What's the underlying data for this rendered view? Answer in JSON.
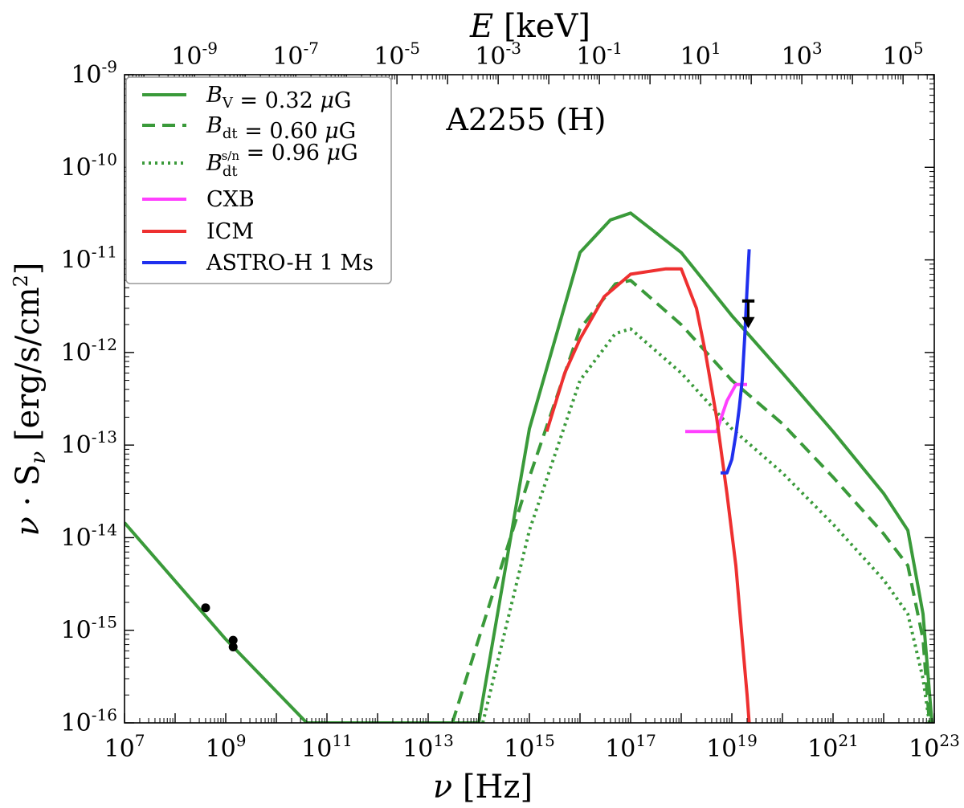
{
  "chart_data": {
    "type": "line",
    "xscale": "log",
    "yscale": "log",
    "xlabel": "ν [Hz]",
    "ylabel": "ν · S_ν [erg/s/cm²]",
    "top_xlabel": "E [keV]",
    "annotation": "A2255 (H)",
    "xlim": [
      10000000.0,
      1e+23
    ],
    "ylim": [
      1e-16,
      1e-09
    ],
    "top_xlim_keV": [
      4.14e-11,
      414000.0
    ],
    "grid": false,
    "legend_position": "top-left",
    "x_tick_exponents": [
      "7",
      "9",
      "11",
      "13",
      "15",
      "17",
      "19",
      "21",
      "23"
    ],
    "y_tick_exponents": [
      "-9",
      "-10",
      "-11",
      "-12",
      "-13",
      "-14",
      "-15",
      "-16"
    ],
    "top_tick_exponents": [
      "-9",
      "-7",
      "-5",
      "-3",
      "-1",
      "1",
      "3",
      "5"
    ],
    "tick_base": "10",
    "series": [
      {
        "name": "B_V = 0.32 μG",
        "color": "#3a9a3a",
        "style": "solid",
        "x": [
          10000000.0,
          1000000000.0,
          40000000000.0,
          100000000000000.0,
          1000000000000000.0,
          1e+16,
          4e+16,
          1e+17,
          1e+18,
          1e+19,
          1e+20,
          1e+21,
          1e+22,
          3e+22,
          6e+22,
          9e+22
        ],
        "y": [
          1.45e-14,
          8e-16,
          1e-16,
          1e-16,
          1.5e-13,
          1.2e-11,
          2.7e-11,
          3.2e-11,
          1.2e-11,
          2.5e-12,
          6e-13,
          1.4e-13,
          3e-14,
          1.2e-14,
          1.5e-15,
          1e-16
        ]
      },
      {
        "name": "B_dt = 0.60 μG",
        "color": "#3a9a3a",
        "style": "dashed",
        "x": [
          30000000000000.0,
          1000000000000000.0,
          1e+16,
          5e+16,
          1e+17,
          1e+18,
          1e+19,
          1e+20,
          1e+21,
          1e+22,
          3e+22,
          6e+22,
          8e+22
        ],
        "y": [
          1e-16,
          4.5e-14,
          1.8e-12,
          5.5e-12,
          6e-12,
          2e-12,
          5e-13,
          1.7e-13,
          4.5e-14,
          1.1e-14,
          5e-15,
          8e-16,
          1e-16
        ]
      },
      {
        "name": "B_dt^s/n = 0.96 μG",
        "color": "#3a9a3a",
        "style": "dotted",
        "x": [
          120000000000000.0,
          1000000000000000.0,
          1e+16,
          5e+16,
          1e+17,
          1e+18,
          1e+19,
          1e+20,
          1e+21,
          1e+22,
          3e+22,
          6e+22,
          8e+22
        ],
        "y": [
          1e-16,
          1.2e-14,
          5e-13,
          1.6e-12,
          1.8e-12,
          6e-13,
          1.5e-13,
          5e-14,
          1.4e-14,
          3.5e-15,
          1.5e-15,
          3e-16,
          1e-16
        ]
      },
      {
        "name": "CXB",
        "color": "#ff40ff",
        "style": "solid",
        "x": [
          1.2e+18,
          5e+18,
          8e+18,
          1.2e+19,
          2e+19
        ],
        "y": [
          1.4e-13,
          1.4e-13,
          3e-13,
          4.5e-13,
          4.5e-13
        ]
      },
      {
        "name": "ICM",
        "color": "#ee3030",
        "style": "solid",
        "x": [
          2200000000000000.0,
          5000000000000000.0,
          1e+16,
          3e+16,
          1e+17,
          5e+17,
          1e+18,
          2e+18,
          3e+18,
          5e+18,
          8e+18,
          1.2e+19,
          1.6e+19,
          2e+19,
          2.2e+19
        ],
        "y": [
          1.4e-13,
          6e-13,
          1.4e-12,
          4e-12,
          7e-12,
          8e-12,
          8e-12,
          3e-12,
          1e-12,
          2e-13,
          3e-14,
          5e-15,
          8e-16,
          2e-16,
          1e-16
        ]
      },
      {
        "name": "ASTRO-H 1 Ms",
        "color": "#2030ee",
        "style": "solid",
        "x": [
          6e+18,
          8e+18,
          1e+19,
          1.2e+19,
          1.4e+19,
          1.6e+19,
          1.8e+19,
          2e+19,
          2.2e+19
        ],
        "y": [
          5e-14,
          5e-14,
          7e-14,
          1.3e-13,
          2.5e-13,
          5e-13,
          1.5e-12,
          5e-12,
          1.3e-11
        ]
      }
    ],
    "data_points": [
      {
        "x": 400000000.0,
        "y": 1.75e-15,
        "yerr": 1.2e-16
      },
      {
        "x": 1400000000.0,
        "y": 7.8e-16,
        "yerr": 6e-17
      },
      {
        "x": 1400000000.0,
        "y": 6.6e-16,
        "yerr": 6e-17
      }
    ],
    "upper_limit": {
      "x_min": 1.6e+19,
      "x_max": 2.8e+19,
      "y": 3.6e-12,
      "arrow_to": 1.9e-12
    }
  }
}
